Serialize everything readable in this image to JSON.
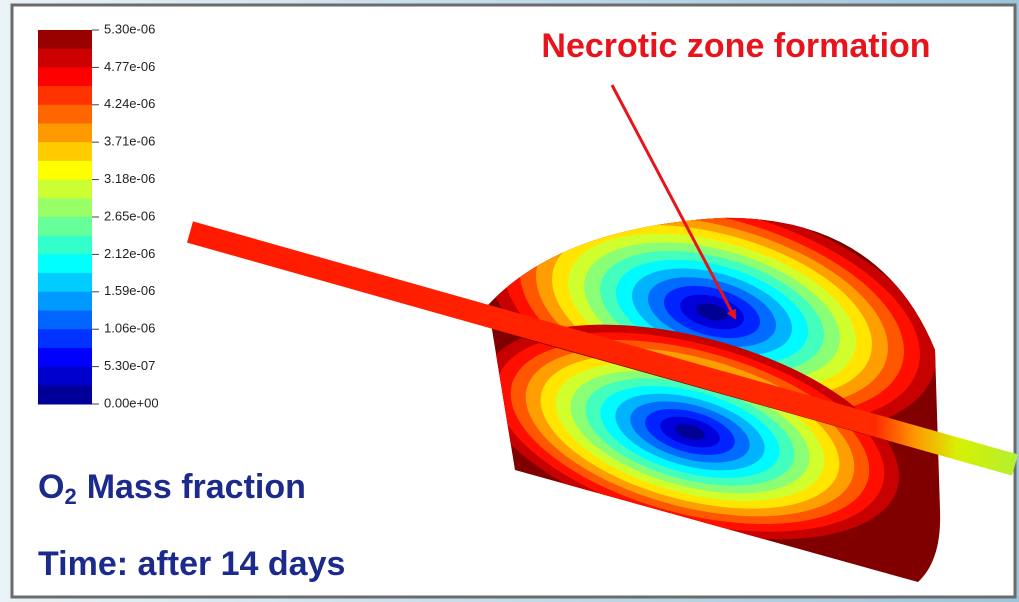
{
  "colorbar": {
    "labels": [
      "5.30e-06",
      "4.77e-06",
      "4.24e-06",
      "3.71e-06",
      "3.18e-06",
      "2.65e-06",
      "2.12e-06",
      "1.59e-06",
      "1.06e-06",
      "5.30e-07",
      "0.00e+00"
    ]
  },
  "annotation": "Necrotic zone formation",
  "quantity": {
    "symbol": "O",
    "subscript": "2",
    "text": "Mass fraction"
  },
  "time": "Time: after 14 days"
}
